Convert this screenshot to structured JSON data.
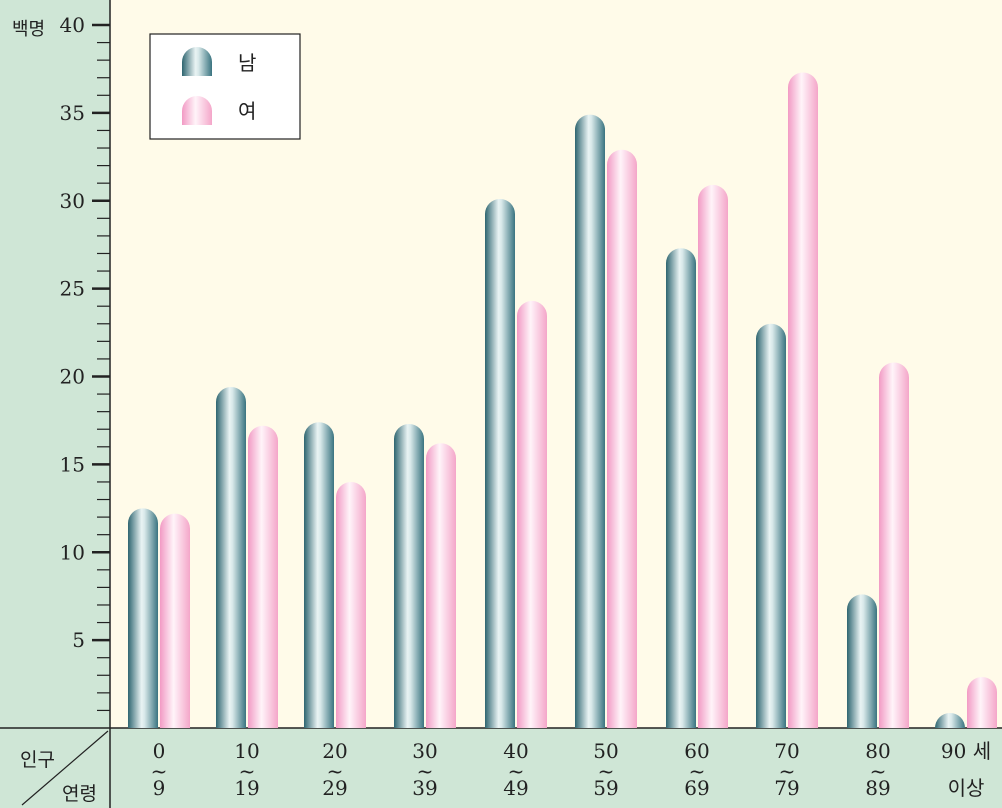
{
  "chart_data": {
    "type": "bar",
    "y_unit_label": "백명",
    "corner_label_top": "인구",
    "corner_label_bottom": "연령",
    "ylim": [
      0,
      40
    ],
    "y_ticks": [
      "5",
      "10",
      "15",
      "20",
      "25",
      "30",
      "35",
      "40"
    ],
    "categories": [
      {
        "top": "0",
        "bottom": "9"
      },
      {
        "top": "10",
        "bottom": "19"
      },
      {
        "top": "20",
        "bottom": "29"
      },
      {
        "top": "30",
        "bottom": "39"
      },
      {
        "top": "40",
        "bottom": "49"
      },
      {
        "top": "50",
        "bottom": "59"
      },
      {
        "top": "60",
        "bottom": "69"
      },
      {
        "top": "70",
        "bottom": "79"
      },
      {
        "top": "80",
        "bottom": "89"
      },
      {
        "top": "90 세",
        "bottom": "이상"
      }
    ],
    "range_mark": "~",
    "series": [
      {
        "name": "남",
        "color": "#3f7d87",
        "values": [
          12.5,
          19.4,
          17.4,
          17.3,
          30.1,
          34.9,
          27.3,
          23.0,
          7.6,
          0.5
        ]
      },
      {
        "name": "여",
        "color": "#f4b3d0",
        "values": [
          12.2,
          17.2,
          14.0,
          16.2,
          24.3,
          32.9,
          30.9,
          37.3,
          20.8,
          2.9
        ]
      }
    ],
    "legend_position": "top-left",
    "grid": false
  },
  "colors": {
    "plot_background": "#fffbe9",
    "axis_panel": "#cfe6d6",
    "male_dark": "#3f7d87",
    "male_light": "#ffffff",
    "female_dark": "#f4b3d0",
    "female_light": "#ffffff"
  }
}
